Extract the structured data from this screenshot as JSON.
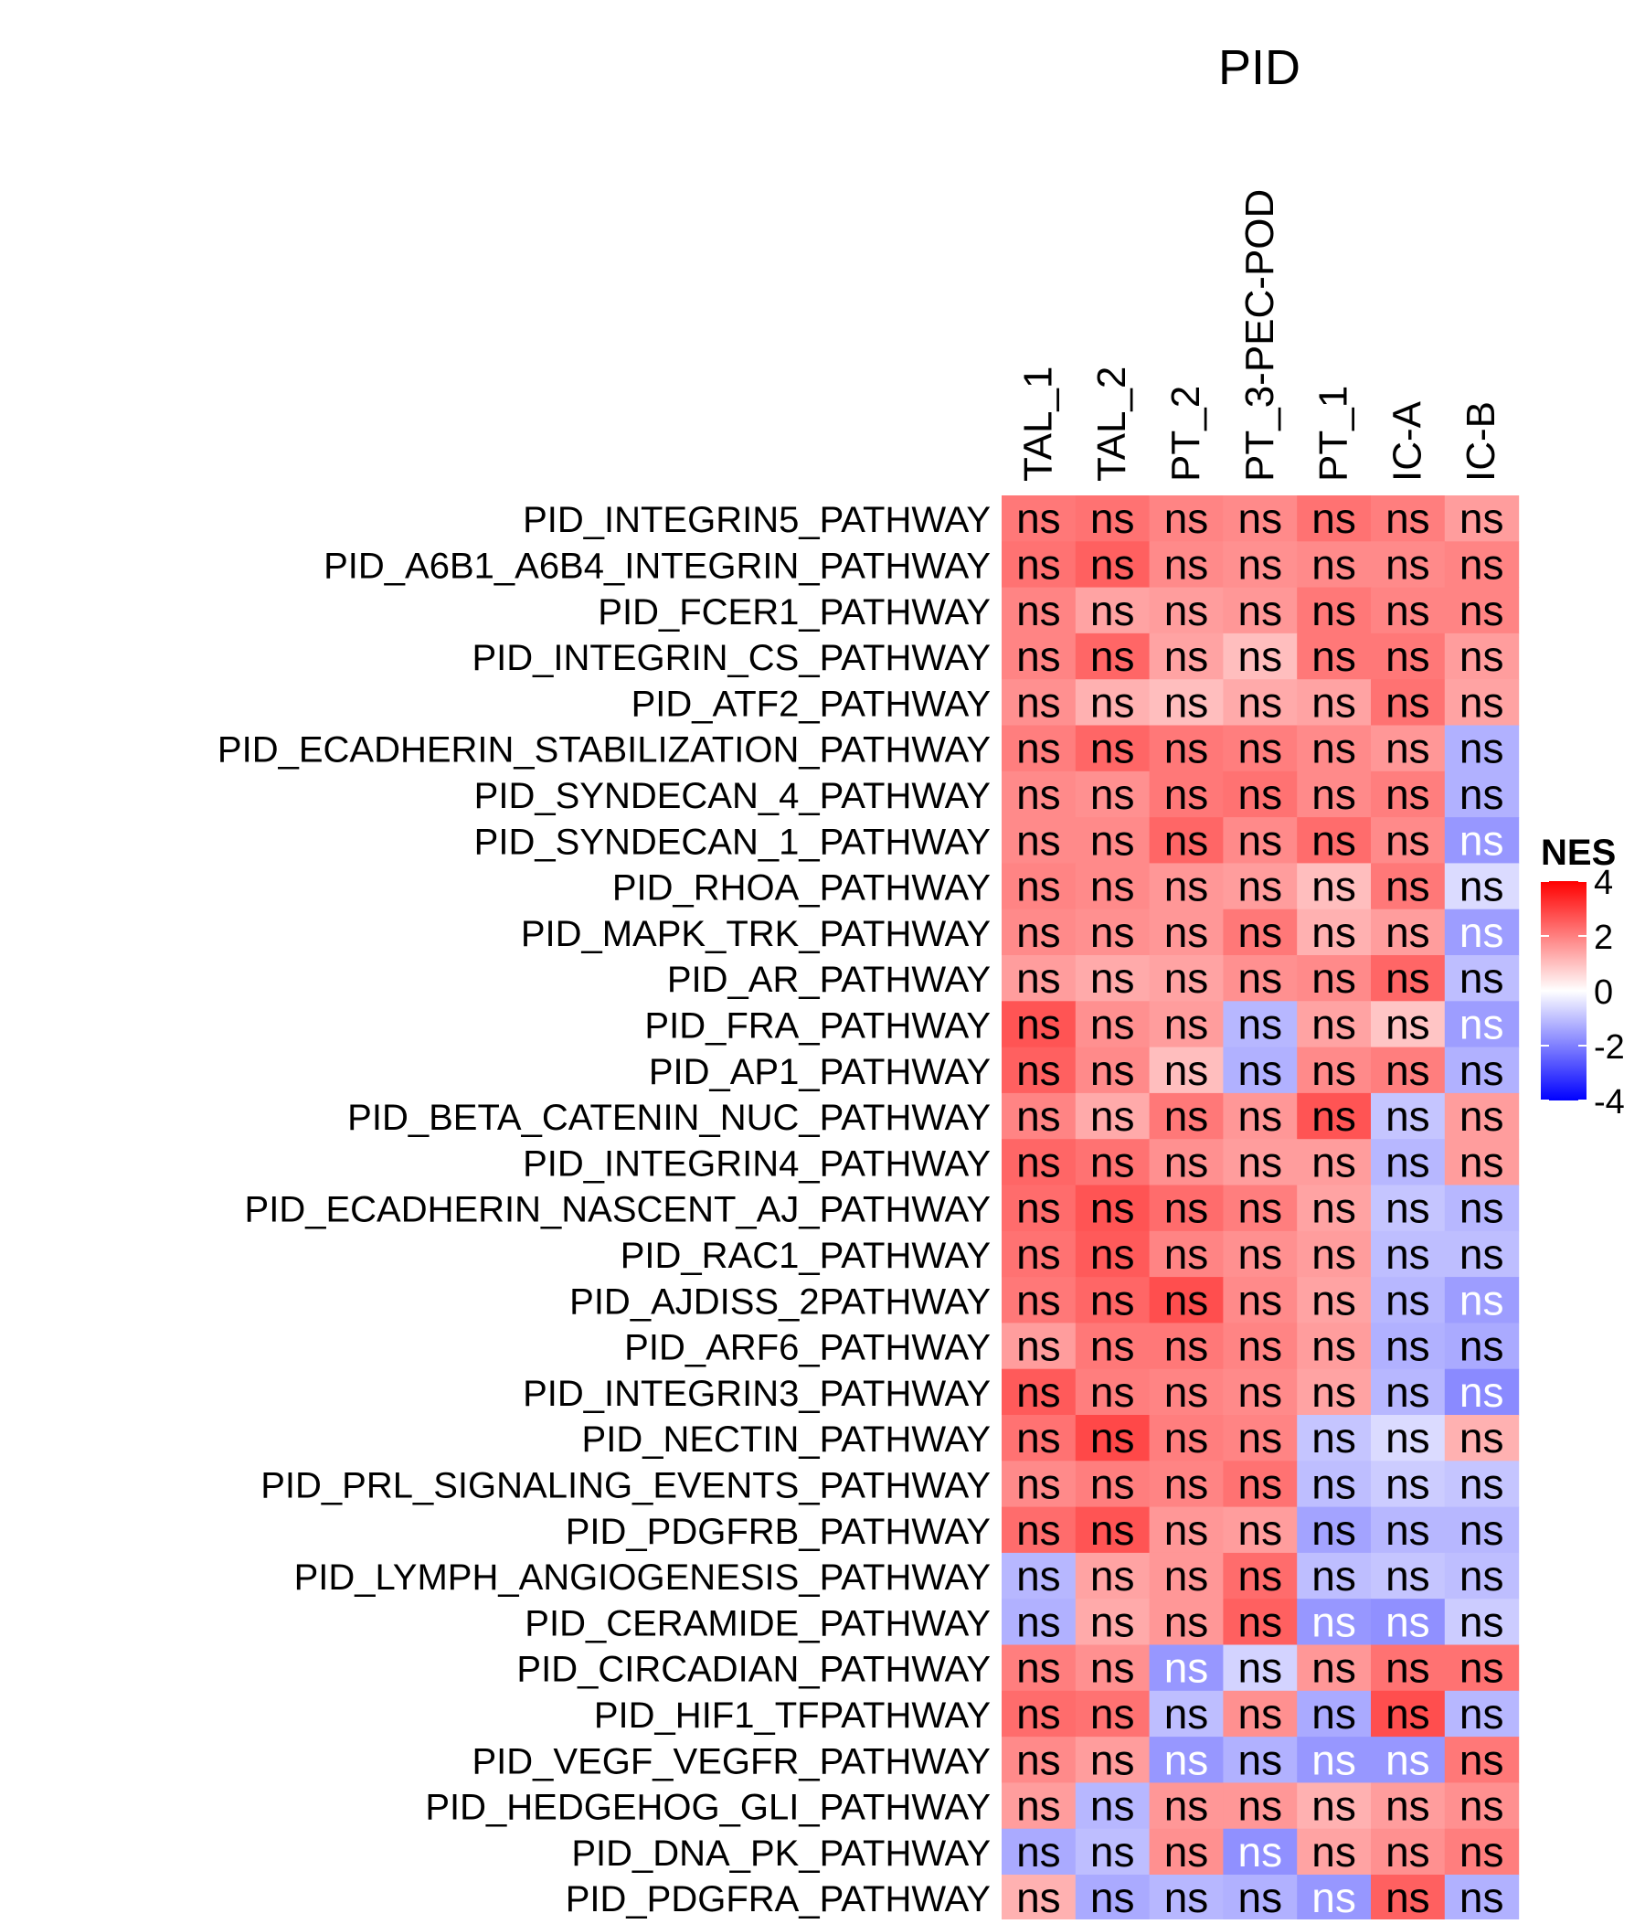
{
  "chart_data": {
    "type": "heatmap",
    "title": "PID",
    "columns": [
      "TAL_1",
      "TAL_2",
      "PT_2",
      "PT_3-PEC-POD",
      "PT_1",
      "IC-A",
      "IC-B"
    ],
    "rows": [
      "PID_INTEGRIN5_PATHWAY",
      "PID_A6B1_A6B4_INTEGRIN_PATHWAY",
      "PID_FCER1_PATHWAY",
      "PID_INTEGRIN_CS_PATHWAY",
      "PID_ATF2_PATHWAY",
      "PID_ECADHERIN_STABILIZATION_PATHWAY",
      "PID_SYNDECAN_4_PATHWAY",
      "PID_SYNDECAN_1_PATHWAY",
      "PID_RHOA_PATHWAY",
      "PID_MAPK_TRK_PATHWAY",
      "PID_AR_PATHWAY",
      "PID_FRA_PATHWAY",
      "PID_AP1_PATHWAY",
      "PID_BETA_CATENIN_NUC_PATHWAY",
      "PID_INTEGRIN4_PATHWAY",
      "PID_ECADHERIN_NASCENT_AJ_PATHWAY",
      "PID_RAC1_PATHWAY",
      "PID_AJDISS_2PATHWAY",
      "PID_ARF6_PATHWAY",
      "PID_INTEGRIN3_PATHWAY",
      "PID_NECTIN_PATHWAY",
      "PID_PRL_SIGNALING_EVENTS_PATHWAY",
      "PID_PDGFRB_PATHWAY",
      "PID_LYMPH_ANGIOGENESIS_PATHWAY",
      "PID_CERAMIDE_PATHWAY",
      "PID_CIRCADIAN_PATHWAY",
      "PID_HIF1_TFPATHWAY",
      "PID_VEGF_VEGFR_PATHWAY",
      "PID_HEDGEHOG_GLI_PATHWAY",
      "PID_DNA_PK_PATHWAY",
      "PID_PDGFRA_PATHWAY"
    ],
    "values": [
      [
        1.9,
        2.0,
        1.7,
        1.6,
        2.0,
        1.8,
        1.3
      ],
      [
        2.0,
        2.3,
        1.6,
        1.5,
        1.6,
        1.6,
        1.7
      ],
      [
        1.7,
        1.2,
        1.3,
        1.4,
        1.9,
        1.7,
        1.7
      ],
      [
        1.7,
        2.2,
        1.2,
        0.8,
        1.9,
        1.9,
        1.3
      ],
      [
        1.5,
        1.0,
        0.8,
        1.1,
        1.2,
        2.0,
        1.2
      ],
      [
        1.8,
        2.2,
        1.9,
        1.8,
        1.6,
        1.4,
        -1.0
      ],
      [
        1.6,
        1.5,
        1.9,
        2.0,
        1.6,
        1.8,
        -1.0
      ],
      [
        1.6,
        1.6,
        2.2,
        1.6,
        2.1,
        1.6,
        -1.4
      ],
      [
        1.7,
        1.6,
        1.4,
        1.3,
        0.8,
        1.9,
        -0.4
      ],
      [
        1.6,
        1.5,
        1.4,
        1.9,
        1.0,
        1.3,
        -1.3
      ],
      [
        1.3,
        1.1,
        1.2,
        1.5,
        1.6,
        2.2,
        -0.8
      ],
      [
        2.5,
        1.5,
        1.3,
        -0.9,
        1.2,
        0.7,
        -1.3
      ],
      [
        2.3,
        1.6,
        0.8,
        -1.0,
        1.6,
        1.8,
        -1.0
      ],
      [
        1.7,
        1.1,
        1.9,
        1.4,
        2.5,
        -0.7,
        1.3
      ],
      [
        2.2,
        2.0,
        1.5,
        1.3,
        1.3,
        -0.9,
        1.3
      ],
      [
        2.1,
        2.5,
        2.1,
        1.8,
        1.2,
        -0.7,
        -0.9
      ],
      [
        2.0,
        2.4,
        1.7,
        1.5,
        1.3,
        -0.8,
        -0.8
      ],
      [
        1.9,
        2.2,
        2.6,
        1.6,
        1.2,
        -0.9,
        -1.3
      ],
      [
        1.3,
        1.9,
        1.9,
        1.7,
        1.3,
        -1.0,
        -1.1
      ],
      [
        2.4,
        1.8,
        1.7,
        1.6,
        1.2,
        -0.9,
        -1.6
      ],
      [
        2.0,
        2.7,
        1.8,
        1.7,
        -0.7,
        -0.4,
        1.0
      ],
      [
        1.6,
        1.8,
        1.7,
        2.0,
        -0.8,
        -0.6,
        -0.7
      ],
      [
        2.1,
        2.5,
        1.4,
        1.3,
        -1.2,
        -0.9,
        -0.9
      ],
      [
        -0.9,
        1.2,
        1.4,
        2.1,
        -0.8,
        -0.7,
        -0.8
      ],
      [
        -1.0,
        1.1,
        1.4,
        2.3,
        -1.4,
        -1.5,
        -0.6
      ],
      [
        1.8,
        1.5,
        -1.4,
        -0.5,
        1.4,
        2.0,
        2.0
      ],
      [
        2.1,
        2.0,
        -0.8,
        1.5,
        -1.1,
        2.6,
        -0.9
      ],
      [
        1.6,
        1.3,
        -1.4,
        -1.0,
        -1.4,
        -1.4,
        1.9
      ],
      [
        1.3,
        -0.9,
        1.4,
        1.4,
        1.0,
        1.3,
        1.5
      ],
      [
        -1.1,
        -0.8,
        1.5,
        -1.5,
        1.2,
        1.5,
        1.8
      ],
      [
        1.0,
        -1.1,
        -0.9,
        -1.0,
        -1.4,
        2.3,
        -1.0
      ]
    ],
    "cell_label": "ns",
    "legend": {
      "title": "NES",
      "ticks": [
        4,
        2,
        0,
        -2,
        -4
      ],
      "range": [
        -4,
        4
      ],
      "placement": "right"
    },
    "colors": {
      "low": "#0000ff",
      "mid": "#ffffff",
      "high": "#ff0000"
    }
  }
}
